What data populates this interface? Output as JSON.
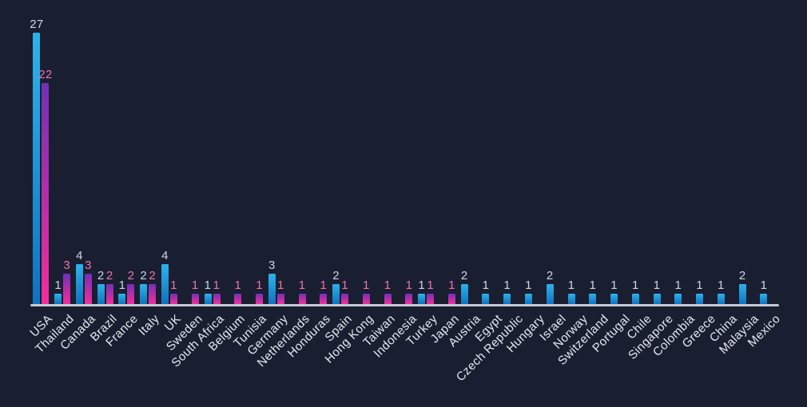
{
  "background_color": "#1A1E31",
  "chart_data": {
    "type": "bar",
    "title": "",
    "xlabel": "",
    "ylabel": "",
    "ylim": [
      0,
      27
    ],
    "grid": false,
    "legend": "none",
    "axis_line_color": "#C6CAD5",
    "tick_label_color": "#E6E9F1",
    "categories": [
      "USA",
      "Thailand",
      "Canada",
      "Brazil",
      "France",
      "Italy",
      "UK",
      "Sweden",
      "South Africa",
      "Belgium",
      "Tunisia",
      "Germany",
      "Netherlands",
      "Honduras",
      "Spain",
      "Hong Kong",
      "Taiwan",
      "Indonesia",
      "Turkey",
      "Japan",
      "Austria",
      "Egypt",
      "Czech Republic",
      "Hungary",
      "Israel",
      "Norway",
      "Switzerland",
      "Portugal",
      "Chile",
      "Singapore",
      "Colombia",
      "Greece",
      "China",
      "Malaysia",
      "Mexico"
    ],
    "series": [
      {
        "name": "blue",
        "color_top": "#2EB2E9",
        "color_bottom": "#0F73BF",
        "label_color": "#C8D8EA",
        "values": [
          27,
          1,
          4,
          2,
          1,
          2,
          4,
          null,
          1,
          null,
          null,
          3,
          null,
          null,
          2,
          null,
          null,
          null,
          1,
          null,
          2,
          1,
          1,
          1,
          2,
          1,
          1,
          1,
          1,
          1,
          1,
          1,
          1,
          2,
          1
        ]
      },
      {
        "name": "pink",
        "color_top": "#7230B5",
        "color_bottom": "#F22E9B",
        "label_color": "#EC74B0",
        "values": [
          22,
          3,
          3,
          2,
          2,
          2,
          1,
          1,
          1,
          1,
          1,
          1,
          1,
          1,
          1,
          1,
          1,
          1,
          1,
          1,
          null,
          null,
          null,
          null,
          null,
          null,
          null,
          null,
          null,
          null,
          null,
          null,
          null,
          null,
          null
        ]
      }
    ]
  }
}
